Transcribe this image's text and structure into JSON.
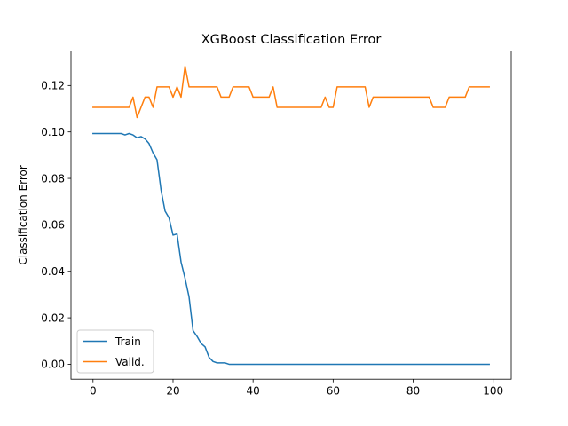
{
  "chart_data": {
    "type": "line",
    "title": "XGBoost Classification Error",
    "xlabel": "",
    "ylabel": "Classification Error",
    "xlim": [
      -5.5,
      104.5
    ],
    "ylim": [
      -0.0064,
      0.1348
    ],
    "xticks": [
      0,
      20,
      40,
      60,
      80,
      100
    ],
    "yticks": [
      0.0,
      0.02,
      0.04,
      0.06,
      0.08,
      0.1,
      0.12
    ],
    "ytick_labels": [
      "0.00",
      "0.02",
      "0.04",
      "0.06",
      "0.08",
      "0.10",
      "0.12"
    ],
    "grid": false,
    "legend_position": "lower-left",
    "series": [
      {
        "name": "Train",
        "color": "#1f77b4",
        "x": [
          0,
          1,
          2,
          3,
          4,
          5,
          6,
          7,
          8,
          9,
          10,
          11,
          12,
          13,
          14,
          15,
          16,
          17,
          18,
          19,
          20,
          21,
          22,
          23,
          24,
          25,
          26,
          27,
          28,
          29,
          30,
          31,
          32,
          33,
          34,
          35,
          36,
          37,
          38,
          39,
          40,
          41,
          42,
          43,
          44,
          45,
          46,
          47,
          48,
          49,
          50,
          51,
          52,
          53,
          54,
          55,
          56,
          57,
          58,
          59,
          60,
          61,
          62,
          63,
          64,
          65,
          66,
          67,
          68,
          69,
          70,
          71,
          72,
          73,
          74,
          75,
          76,
          77,
          78,
          79,
          80,
          81,
          82,
          83,
          84,
          85,
          86,
          87,
          88,
          89,
          90,
          91,
          92,
          93,
          94,
          95,
          96,
          97,
          98,
          99
        ],
        "y": [
          0.0993,
          0.0993,
          0.0993,
          0.0993,
          0.0993,
          0.0993,
          0.0993,
          0.0993,
          0.0987,
          0.0993,
          0.0987,
          0.0975,
          0.098,
          0.097,
          0.095,
          0.091,
          0.088,
          0.075,
          0.066,
          0.063,
          0.0556,
          0.0561,
          0.044,
          0.037,
          0.029,
          0.0145,
          0.012,
          0.009,
          0.0075,
          0.003,
          0.0012,
          0.0006,
          0.0006,
          0.0006,
          0.0,
          0.0,
          0.0,
          0.0,
          0.0,
          0.0,
          0.0,
          0.0,
          0.0,
          0.0,
          0.0,
          0.0,
          0.0,
          0.0,
          0.0,
          0.0,
          0.0,
          0.0,
          0.0,
          0.0,
          0.0,
          0.0,
          0.0,
          0.0,
          0.0,
          0.0,
          0.0,
          0.0,
          0.0,
          0.0,
          0.0,
          0.0,
          0.0,
          0.0,
          0.0,
          0.0,
          0.0,
          0.0,
          0.0,
          0.0,
          0.0,
          0.0,
          0.0,
          0.0,
          0.0,
          0.0,
          0.0,
          0.0,
          0.0,
          0.0,
          0.0,
          0.0,
          0.0,
          0.0,
          0.0,
          0.0,
          0.0,
          0.0,
          0.0,
          0.0,
          0.0,
          0.0,
          0.0,
          0.0,
          0.0,
          0.0
        ]
      },
      {
        "name": "Valid.",
        "color": "#ff7f0e",
        "x": [
          0,
          1,
          2,
          3,
          4,
          5,
          6,
          7,
          8,
          9,
          10,
          11,
          12,
          13,
          14,
          15,
          16,
          17,
          18,
          19,
          20,
          21,
          22,
          23,
          24,
          25,
          26,
          27,
          28,
          29,
          30,
          31,
          32,
          33,
          34,
          35,
          36,
          37,
          38,
          39,
          40,
          41,
          42,
          43,
          44,
          45,
          46,
          47,
          48,
          49,
          50,
          51,
          52,
          53,
          54,
          55,
          56,
          57,
          58,
          59,
          60,
          61,
          62,
          63,
          64,
          65,
          66,
          67,
          68,
          69,
          70,
          71,
          72,
          73,
          74,
          75,
          76,
          77,
          78,
          79,
          80,
          81,
          82,
          83,
          84,
          85,
          86,
          87,
          88,
          89,
          90,
          91,
          92,
          93,
          94,
          95,
          96,
          97,
          98,
          99
        ],
        "y": [
          0.1106,
          0.1106,
          0.1106,
          0.1106,
          0.1106,
          0.1106,
          0.1106,
          0.1106,
          0.1106,
          0.1106,
          0.115,
          0.1062,
          0.1106,
          0.115,
          0.115,
          0.1106,
          0.1194,
          0.1194,
          0.1194,
          0.1194,
          0.115,
          0.1194,
          0.115,
          0.1283,
          0.1194,
          0.1194,
          0.1194,
          0.1194,
          0.1194,
          0.1194,
          0.1194,
          0.1194,
          0.115,
          0.115,
          0.115,
          0.1194,
          0.1194,
          0.1194,
          0.1194,
          0.1194,
          0.115,
          0.115,
          0.115,
          0.115,
          0.115,
          0.1194,
          0.1106,
          0.1106,
          0.1106,
          0.1106,
          0.1106,
          0.1106,
          0.1106,
          0.1106,
          0.1106,
          0.1106,
          0.1106,
          0.1106,
          0.115,
          0.1106,
          0.1106,
          0.1194,
          0.1194,
          0.1194,
          0.1194,
          0.1194,
          0.1194,
          0.1194,
          0.1194,
          0.1106,
          0.115,
          0.115,
          0.115,
          0.115,
          0.115,
          0.115,
          0.115,
          0.115,
          0.115,
          0.115,
          0.115,
          0.115,
          0.115,
          0.115,
          0.115,
          0.1106,
          0.1106,
          0.1106,
          0.1106,
          0.115,
          0.115,
          0.115,
          0.115,
          0.115,
          0.1194,
          0.1194,
          0.1194,
          0.1194,
          0.1194,
          0.1194
        ]
      }
    ]
  }
}
